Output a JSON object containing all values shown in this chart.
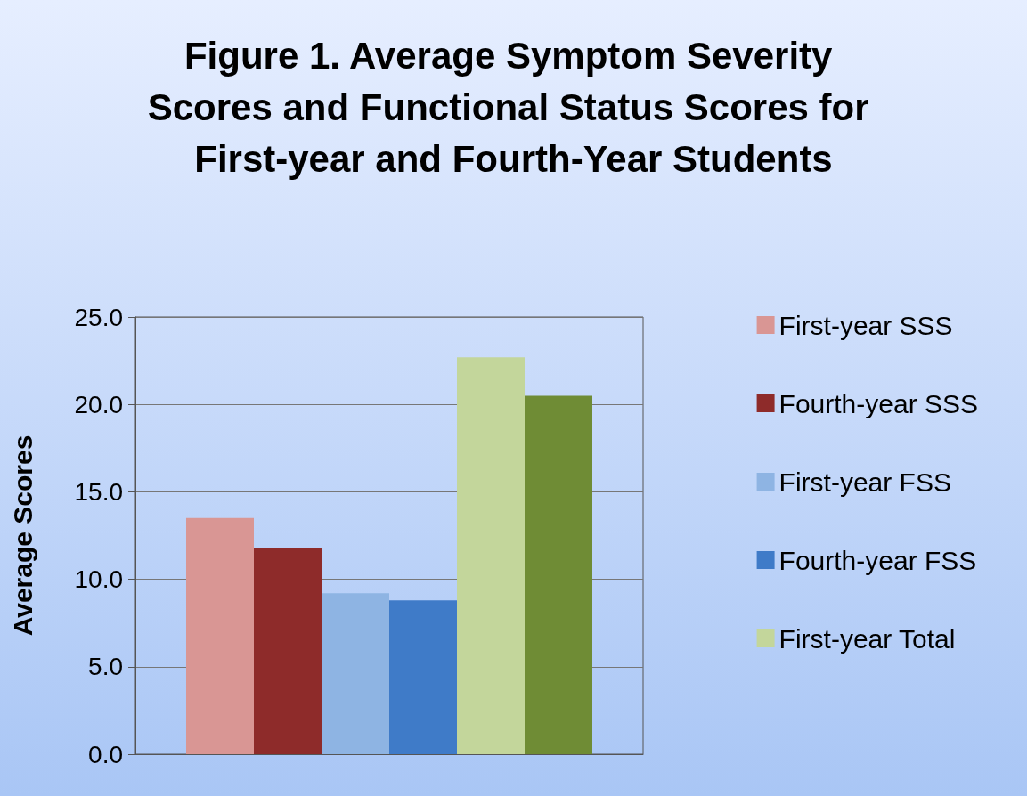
{
  "chart_data": {
    "type": "bar",
    "title": "Figure 1. Average Symptom Severity Scores and Functional Status Scores for First-year and Fourth-Year Students",
    "ylabel": "Average Scores",
    "categories": [
      null
    ],
    "series": [
      {
        "name": "First-year SSS",
        "color": "#d99694",
        "values": [
          13.5
        ]
      },
      {
        "name": "Fourth-year SSS",
        "color": "#8e2b2a",
        "values": [
          11.8
        ]
      },
      {
        "name": "First-year FSS",
        "color": "#8eb4e3",
        "values": [
          9.2
        ]
      },
      {
        "name": "Fourth-year FSS",
        "color": "#3f7bc8",
        "values": [
          8.8
        ]
      },
      {
        "name": "First-year Total",
        "color": "#c3d69b",
        "values": [
          22.7
        ]
      },
      {
        "color": "#6f8c35",
        "values": [
          20.5
        ]
      }
    ],
    "ylim": [
      0,
      25
    ],
    "yticks": [
      {
        "value": 0,
        "label": "0.0"
      },
      {
        "value": 5,
        "label": "5.0"
      },
      {
        "value": 10,
        "label": "10.0"
      },
      {
        "value": 15,
        "label": "15.0"
      },
      {
        "value": 20,
        "label": "20.0"
      },
      {
        "value": 25,
        "label": "25.0"
      }
    ],
    "grid": "y",
    "legend": "right",
    "tick_labels": "y"
  }
}
